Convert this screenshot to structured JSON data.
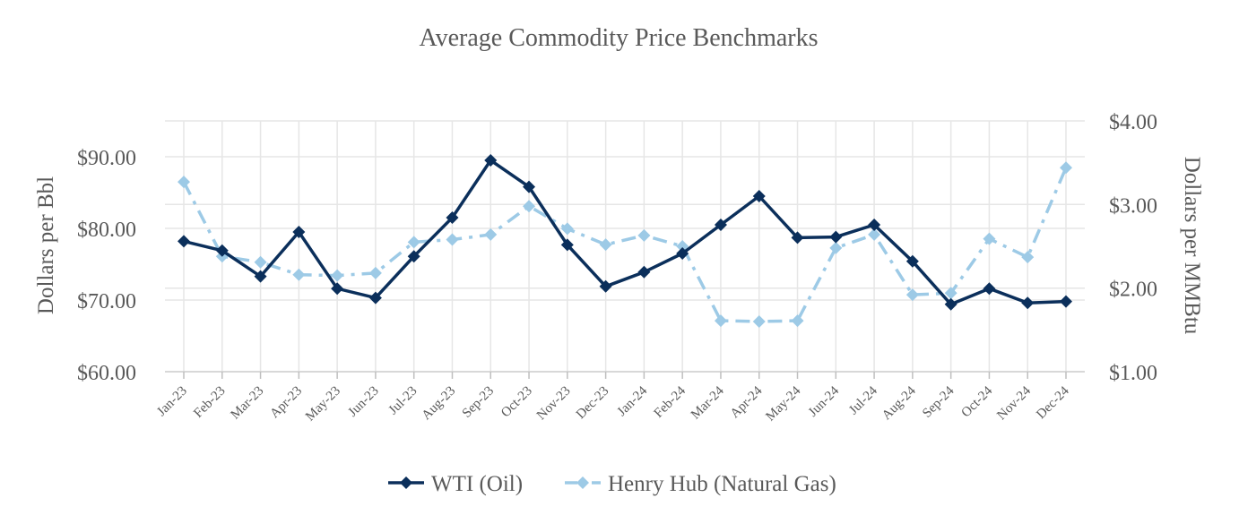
{
  "chart_data": {
    "type": "line",
    "title": "Average Commodity Price Benchmarks",
    "ylabel_left": "Dollars per Bbl",
    "ylabel_right": "Dollars per MMBtu",
    "xlabel": "",
    "categories": [
      "Jan-23",
      "Feb-23",
      "Mar-23",
      "Apr-23",
      "May-23",
      "Jun-23",
      "Jul-23",
      "Aug-23",
      "Sep-23",
      "Oct-23",
      "Nov-23",
      "Dec-23",
      "Jan-24",
      "Feb-24",
      "Mar-24",
      "Apr-24",
      "May-24",
      "Jun-24",
      "Jul-24",
      "Aug-24",
      "Sep-24",
      "Oct-24",
      "Nov-24",
      "Dec-24"
    ],
    "y_left": {
      "lim": [
        60,
        95
      ],
      "ticks": [
        60,
        70,
        80,
        90
      ],
      "tick_labels": [
        "$60.00",
        "$70.00",
        "$80.00",
        "$90.00"
      ]
    },
    "y_right": {
      "lim": [
        1,
        4
      ],
      "ticks": [
        1,
        2,
        3,
        4
      ],
      "tick_labels": [
        "$1.00",
        "$2.00",
        "$3.00",
        "$4.00"
      ]
    },
    "grid": true,
    "legend_position": "bottom-center",
    "series": [
      {
        "name": "WTI (Oil)",
        "axis": "left",
        "color": "#0b2f5b",
        "line_style": "solid",
        "marker": "diamond",
        "values": [
          78.2,
          76.9,
          73.3,
          79.5,
          71.6,
          70.3,
          76.1,
          81.5,
          89.5,
          85.8,
          77.7,
          71.9,
          73.9,
          76.5,
          80.5,
          84.5,
          78.7,
          78.8,
          80.5,
          75.4,
          69.4,
          71.6,
          69.6,
          69.8
        ]
      },
      {
        "name": "Henry Hub (Natural Gas)",
        "axis": "right",
        "color": "#9dcae6",
        "line_style": "dash-dot",
        "marker": "diamond",
        "values": [
          3.27,
          2.38,
          2.31,
          2.16,
          2.15,
          2.18,
          2.55,
          2.58,
          2.64,
          2.98,
          2.71,
          2.52,
          2.63,
          2.5,
          1.61,
          1.6,
          1.61,
          2.48,
          2.64,
          1.92,
          1.94,
          2.59,
          2.37,
          3.44
        ]
      }
    ]
  }
}
